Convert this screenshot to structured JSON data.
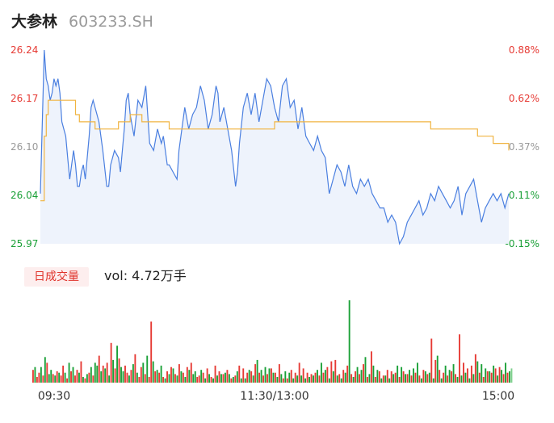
{
  "header": {
    "name": "大参林",
    "code": "603233.SH"
  },
  "volume_panel": {
    "badge": "日成交量",
    "summary": "vol: 4.72万手"
  },
  "colors": {
    "price_line": "#4a7fe0",
    "avg_line": "#f0b441",
    "area_fill": "#eef3fc",
    "up": "#e63a34",
    "down": "#1aa037",
    "neutral": "#999999"
  },
  "chart_data": [
    {
      "type": "line",
      "title": "",
      "x_ticks": [
        "09:30",
        "11:30/13:00",
        "15:00"
      ],
      "x_range": [
        0,
        240
      ],
      "y_ticks_left": [
        "26.24",
        "26.17",
        "26.10",
        "26.04",
        "25.97"
      ],
      "y_ticks_right": [
        "0.88%",
        "0.62%",
        "0.37%",
        "0.11%",
        "-0.15%"
      ],
      "y_range": [
        25.97,
        26.24
      ],
      "series": [
        {
          "role": "price",
          "x": [
            0,
            2,
            3,
            4,
            5,
            6,
            7,
            8,
            9,
            10,
            11,
            12,
            13,
            14,
            15,
            16,
            17,
            18,
            19,
            20,
            21,
            22,
            23,
            24,
            25,
            26,
            27,
            28,
            30,
            32,
            34,
            35,
            36,
            38,
            40,
            41,
            42,
            43,
            44,
            45,
            46,
            48,
            50,
            52,
            54,
            55,
            56,
            58,
            60,
            62,
            63,
            64,
            65,
            66,
            68,
            70,
            71,
            72,
            74,
            76,
            78,
            80,
            82,
            84,
            86,
            88,
            90,
            91,
            92,
            94,
            96,
            98,
            100,
            101,
            102,
            104,
            106,
            108,
            110,
            112,
            114,
            116,
            118,
            120,
            122,
            124,
            126,
            128,
            130,
            132,
            134,
            136,
            138,
            140,
            142,
            144,
            146,
            148,
            150,
            152,
            154,
            156,
            158,
            160,
            162,
            164,
            166,
            168,
            170,
            172,
            174,
            176,
            178,
            180,
            182,
            184,
            186,
            188,
            190,
            192,
            194,
            196,
            198,
            200,
            202,
            204,
            206,
            208,
            210,
            212,
            214,
            216,
            218,
            220,
            222,
            224,
            226,
            228,
            230,
            232,
            234,
            236,
            238,
            240
          ],
          "y": [
            26.04,
            26.24,
            26.2,
            26.19,
            26.17,
            26.18,
            26.2,
            26.19,
            26.2,
            26.18,
            26.14,
            26.13,
            26.12,
            26.09,
            26.06,
            26.08,
            26.1,
            26.08,
            26.05,
            26.05,
            26.07,
            26.08,
            26.06,
            26.09,
            26.12,
            26.16,
            26.17,
            26.16,
            26.14,
            26.1,
            26.05,
            26.05,
            26.08,
            26.1,
            26.09,
            26.07,
            26.1,
            26.13,
            26.17,
            26.18,
            26.15,
            26.12,
            26.17,
            26.16,
            26.19,
            26.15,
            26.11,
            26.1,
            26.13,
            26.11,
            26.12,
            26.1,
            26.08,
            26.08,
            26.07,
            26.06,
            26.1,
            26.12,
            26.16,
            26.13,
            26.15,
            26.16,
            26.19,
            26.17,
            26.13,
            26.15,
            26.19,
            26.18,
            26.14,
            26.16,
            26.13,
            26.1,
            26.05,
            26.07,
            26.11,
            26.16,
            26.18,
            26.15,
            26.18,
            26.14,
            26.17,
            26.2,
            26.19,
            26.16,
            26.14,
            26.19,
            26.2,
            26.16,
            26.17,
            26.13,
            26.16,
            26.12,
            26.11,
            26.1,
            26.12,
            26.1,
            26.09,
            26.04,
            26.06,
            26.08,
            26.07,
            26.05,
            26.08,
            26.05,
            26.04,
            26.06,
            26.05,
            26.06,
            26.04,
            26.03,
            26.02,
            26.02,
            26.0,
            26.01,
            26.0,
            25.97,
            25.98,
            26.0,
            26.01,
            26.02,
            26.03,
            26.01,
            26.02,
            26.04,
            26.03,
            26.05,
            26.04,
            26.03,
            26.02,
            26.03,
            26.05,
            26.01,
            26.04,
            26.05,
            26.06,
            26.03,
            26.0,
            26.02,
            26.03,
            26.04,
            26.03,
            26.04,
            26.02,
            26.04
          ],
          "note_unit": "price"
        },
        {
          "role": "average",
          "x": [
            0,
            2,
            3,
            4,
            6,
            8,
            10,
            12,
            14,
            16,
            18,
            20,
            21,
            22,
            24,
            26,
            28,
            30,
            32,
            34,
            36,
            38,
            40,
            42,
            44,
            46,
            48,
            50,
            52,
            54,
            56,
            58,
            60,
            62,
            64,
            66,
            68,
            70,
            72,
            80,
            88,
            96,
            104,
            112,
            120,
            128,
            136,
            144,
            152,
            160,
            168,
            176,
            184,
            192,
            198,
            200,
            208,
            216,
            224,
            232,
            240
          ],
          "y": [
            26.03,
            26.12,
            26.15,
            26.17,
            26.17,
            26.17,
            26.17,
            26.17,
            26.17,
            26.17,
            26.15,
            26.14,
            26.14,
            26.14,
            26.14,
            26.14,
            26.13,
            26.13,
            26.13,
            26.13,
            26.13,
            26.13,
            26.14,
            26.14,
            26.14,
            26.15,
            26.15,
            26.15,
            26.14,
            26.14,
            26.14,
            26.14,
            26.14,
            26.14,
            26.14,
            26.13,
            26.13,
            26.13,
            26.13,
            26.13,
            26.13,
            26.13,
            26.13,
            26.13,
            26.14,
            26.14,
            26.14,
            26.14,
            26.14,
            26.14,
            26.14,
            26.14,
            26.14,
            26.14,
            26.14,
            26.13,
            26.13,
            26.13,
            26.12,
            26.11,
            26.1
          ],
          "note_unit": "price"
        }
      ]
    },
    {
      "type": "bar",
      "title": "",
      "x_range": [
        0,
        240
      ],
      "count": 240,
      "values": [
        9,
        11,
        4,
        7,
        11,
        5,
        18,
        14,
        6,
        9,
        6,
        5,
        8,
        7,
        5,
        12,
        7,
        3,
        14,
        8,
        11,
        5,
        9,
        7,
        15,
        4,
        3,
        6,
        7,
        11,
        5,
        14,
        12,
        19,
        8,
        12,
        10,
        14,
        5,
        28,
        16,
        10,
        26,
        17,
        11,
        8,
        12,
        7,
        5,
        9,
        13,
        20,
        7,
        4,
        11,
        14,
        6,
        18,
        4,
        43,
        15,
        8,
        9,
        7,
        12,
        4,
        3,
        8,
        6,
        11,
        10,
        6,
        5,
        13,
        8,
        7,
        4,
        11,
        9,
        14,
        6,
        8,
        4,
        5,
        9,
        7,
        3,
        10,
        6,
        4,
        3,
        12,
        5,
        8,
        6,
        6,
        7,
        9,
        6,
        3,
        4,
        5,
        8,
        12,
        3,
        10,
        3,
        7,
        9,
        8,
        5,
        13,
        5,
        7,
        9,
        5,
        11,
        6,
        10,
        10,
        7,
        7,
        4,
        13,
        6,
        3,
        8,
        3,
        7,
        9,
        3,
        7,
        5,
        14,
        5,
        10,
        3,
        7,
        4,
        6,
        5,
        7,
        9,
        5,
        14,
        7,
        9,
        11,
        3,
        15,
        8,
        16,
        5,
        6,
        3,
        9,
        7,
        12,
        10,
        6,
        4,
        8,
        11,
        6,
        9,
        13,
        18,
        4,
        6,
        7,
        12,
        4,
        9,
        8,
        3,
        5,
        5,
        9,
        3,
        8,
        6,
        7,
        12,
        4,
        11,
        8,
        6,
        6,
        9,
        5,
        10,
        7,
        14,
        5,
        3,
        9,
        8,
        6,
        7,
        11,
        3,
        16,
        8,
        9,
        3,
        7,
        12,
        5,
        9,
        8,
        13,
        6,
        4,
        9,
        5,
        14,
        7,
        10,
        3,
        12,
        6,
        9,
        15,
        7,
        13,
        4,
        10,
        8,
        8,
        7,
        12,
        10,
        5,
        11,
        9,
        6,
        14,
        7,
        8,
        10,
        11,
        6,
        9,
        6,
        13,
        4,
        10,
        8,
        12,
        5
      ],
      "directions": [
        "u",
        "d",
        "u",
        "u",
        "d",
        "u",
        "d",
        "u",
        "d",
        "d",
        "u",
        "d",
        "u",
        "d",
        "u",
        "u",
        "d",
        "u",
        "d",
        "u",
        "d",
        "u",
        "u",
        "d",
        "u",
        "d",
        "u",
        "d",
        "u",
        "d",
        "u",
        "d",
        "d",
        "u",
        "d",
        "u",
        "d",
        "u",
        "d",
        "u",
        "d",
        "u",
        "d",
        "u",
        "d",
        "d",
        "u",
        "u",
        "d",
        "u",
        "d",
        "u",
        "d",
        "u",
        "u",
        "d",
        "u",
        "d",
        "u",
        "u",
        "d",
        "u",
        "d",
        "u",
        "d",
        "u",
        "d",
        "u",
        "d",
        "u",
        "d",
        "u",
        "d",
        "u",
        "d",
        "u",
        "d",
        "u",
        "d",
        "u",
        "d",
        "d",
        "u",
        "u",
        "d",
        "u",
        "d",
        "u",
        "d",
        "u",
        "d",
        "u",
        "d",
        "u",
        "d",
        "u",
        "d",
        "u",
        "d",
        "u",
        "d",
        "u",
        "d",
        "u",
        "d",
        "u",
        "d",
        "u",
        "d",
        "u",
        "d",
        "u",
        "d",
        "u",
        "d",
        "u",
        "d",
        "u",
        "d",
        "u",
        "d",
        "u",
        "d",
        "u",
        "d",
        "u",
        "d",
        "u",
        "d",
        "u",
        "d",
        "u",
        "d",
        "u",
        "d",
        "u",
        "d",
        "u",
        "d",
        "u",
        "d",
        "u",
        "d",
        "u",
        "d",
        "u",
        "d",
        "u",
        "d",
        "u",
        "d",
        "u",
        "d",
        "u",
        "d",
        "u",
        "d",
        "u",
        "d",
        "u",
        "d",
        "u",
        "d",
        "u",
        "d",
        "u",
        "d",
        "u",
        "d",
        "u",
        "d",
        "u",
        "d",
        "u",
        "d",
        "u",
        "d",
        "u",
        "d",
        "u",
        "d",
        "u",
        "d",
        "u",
        "d",
        "u",
        "d",
        "u",
        "d",
        "u",
        "d",
        "u",
        "d",
        "u",
        "d",
        "u",
        "d",
        "u",
        "d",
        "u",
        "d",
        "u",
        "d",
        "u",
        "d",
        "u",
        "d",
        "u",
        "d",
        "u",
        "d",
        "u",
        "d",
        "u",
        "d",
        "u",
        "d",
        "u",
        "d",
        "u",
        "d",
        "u",
        "d",
        "u",
        "d",
        "u",
        "d",
        "u",
        "d",
        "u",
        "d",
        "u",
        "d",
        "u",
        "d",
        "u",
        "d",
        "u",
        "d",
        "n"
      ],
      "spikes": [
        [
          158,
          58
        ],
        [
          199,
          31
        ],
        [
          213,
          34
        ],
        [
          57,
          19
        ],
        [
          112,
          16
        ],
        [
          169,
          22
        ],
        [
          202,
          19
        ],
        [
          221,
          20
        ]
      ]
    }
  ]
}
